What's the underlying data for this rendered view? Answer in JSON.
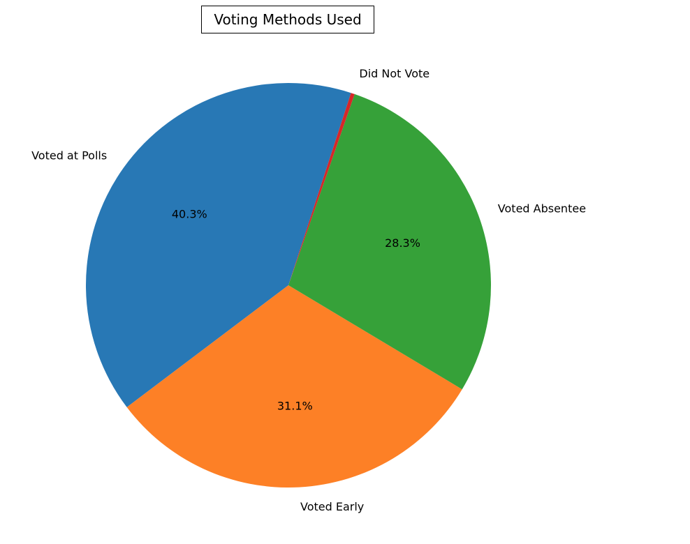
{
  "chart_data": {
    "type": "pie",
    "title": "Voting Methods Used",
    "start_angle_deg": 72,
    "direction": "counterclockwise",
    "slices": [
      {
        "label": "Voted at Polls",
        "value": 40.3,
        "pct_label": "40.3%",
        "color": "#2878b5"
      },
      {
        "label": "Voted Early",
        "value": 31.1,
        "pct_label": "31.1%",
        "color": "#fd8026"
      },
      {
        "label": "Voted Absentee",
        "value": 28.3,
        "pct_label": "28.3%",
        "color": "#36a139"
      },
      {
        "label": "Did Not Vote",
        "value": 0.3,
        "pct_label": "",
        "color": "#d62728"
      }
    ]
  }
}
